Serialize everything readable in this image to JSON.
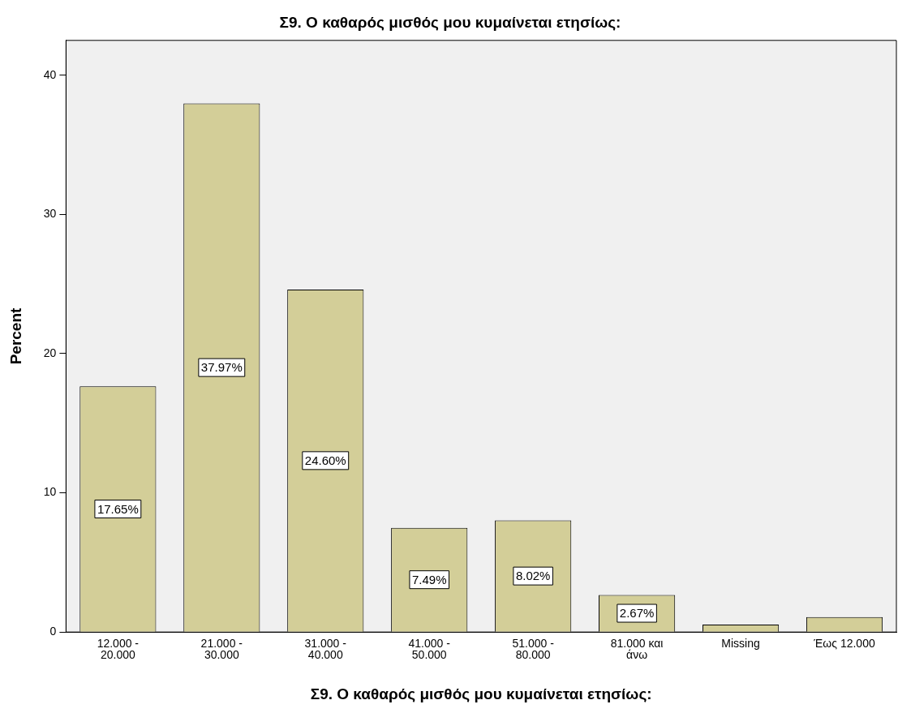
{
  "chart_data": {
    "type": "bar",
    "title": "Σ9. Ο καθαρός μισθός μου κυμαίνεται ετησίως:",
    "xlabel": "Σ9. Ο καθαρός μισθός μου κυμαίνεται ετησίως:",
    "ylabel": "Percent",
    "categories": [
      "12.000 -\n20.000",
      "21.000 -\n30.000",
      "31.000 -\n40.000",
      "41.000 -\n50.000",
      "51.000 -\n80.000",
      "81.000 και\nάνω",
      "Missing",
      "Έως 12.000"
    ],
    "values": [
      17.65,
      37.97,
      24.6,
      7.49,
      8.02,
      2.67,
      0.53,
      1.07
    ],
    "value_labels": [
      "17.65%",
      "37.97%",
      "24.60%",
      "7.49%",
      "8.02%",
      "2.67%",
      null,
      null
    ],
    "color": "#d3ce98",
    "ylim": [
      0,
      42.5
    ],
    "yticks": [
      0,
      10,
      20,
      30,
      40
    ],
    "grid": false,
    "legend": false
  }
}
